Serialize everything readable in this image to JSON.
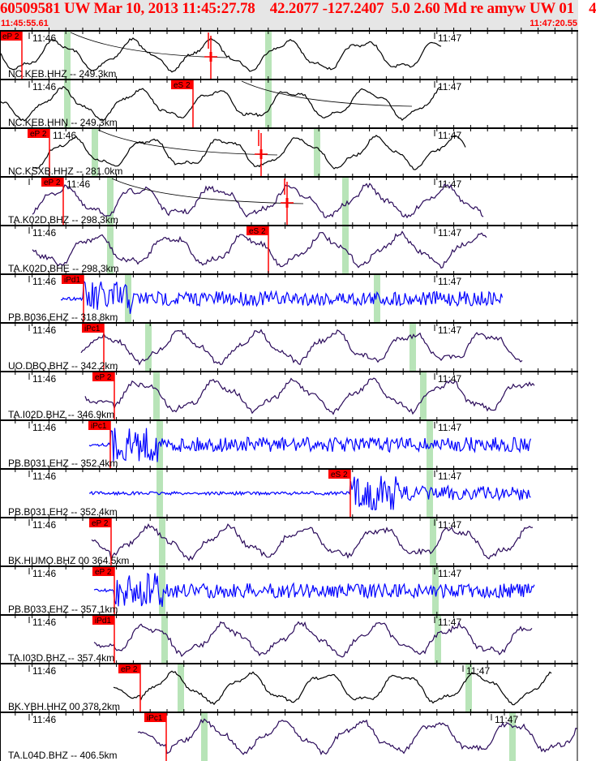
{
  "header": {
    "title": "60509581 UW Mar 10, 2013 11:45:27.78    42.2077 -127.2407  5.0 2.60 Md re amyw UW 01    4",
    "start_time": "11:45:55.61",
    "end_time": "11:47:20.55"
  },
  "colors": {
    "pick": "#ff0000",
    "predicted_arrival": "#b8e4b8",
    "broadband": "#2a0a5a",
    "short_period": "#000000",
    "strain": "#0000ff"
  },
  "minute_labels": [
    "11:46",
    "11:47"
  ],
  "traces": [
    {
      "station": "NC.KEB.HHZ -- 249.3km",
      "pick": "eP 2",
      "s_marker": true,
      "kind": "sp"
    },
    {
      "station": "NC.KEB.HHN -- 249.3km",
      "pick": "eS 2",
      "kind": "sp"
    },
    {
      "station": "NC.KSXB.HHZ -- 281.0km",
      "pick": "eP 2",
      "s_marker": true,
      "kind": "sp"
    },
    {
      "station": "TA.K02D.BHZ -- 298.3km",
      "pick": "eP 2",
      "s_marker": true,
      "kind": "bb"
    },
    {
      "station": "TA.K02D.BHE -- 298.3km",
      "pick": "eS 2",
      "kind": "bb"
    },
    {
      "station": "PB.B036.EHZ -- 318.8km",
      "pick": "iPd1",
      "kind": "hf"
    },
    {
      "station": "UO.DBQ.BHZ -- 342.2km",
      "pick": "iPc1",
      "kind": "bb"
    },
    {
      "station": "TA.I02D.BHZ -- 346.9km",
      "pick": "eP 2",
      "kind": "bb"
    },
    {
      "station": "PB.B031.EHZ -- 352.4km",
      "pick": "iPc1",
      "kind": "hf"
    },
    {
      "station": "PB.B031.EH2 -- 352.4km",
      "pick": "eS 2",
      "kind": "hf"
    },
    {
      "station": "BK.HUMO.BHZ 00 364.5km",
      "pick": "eP 2",
      "kind": "bb"
    },
    {
      "station": "PB.B033.EHZ -- 357.1km",
      "pick": "eP 2",
      "kind": "hf"
    },
    {
      "station": "TA.I03D.BHZ -- 357.4km",
      "pick": "iPd1",
      "kind": "bb"
    },
    {
      "station": "BK.YBH.HHZ 00 378.2km",
      "pick": "eP 2",
      "kind": "sp"
    },
    {
      "station": "TA.L04D.BHZ -- 406.5km",
      "pick": "iPc1",
      "kind": "bb"
    }
  ]
}
